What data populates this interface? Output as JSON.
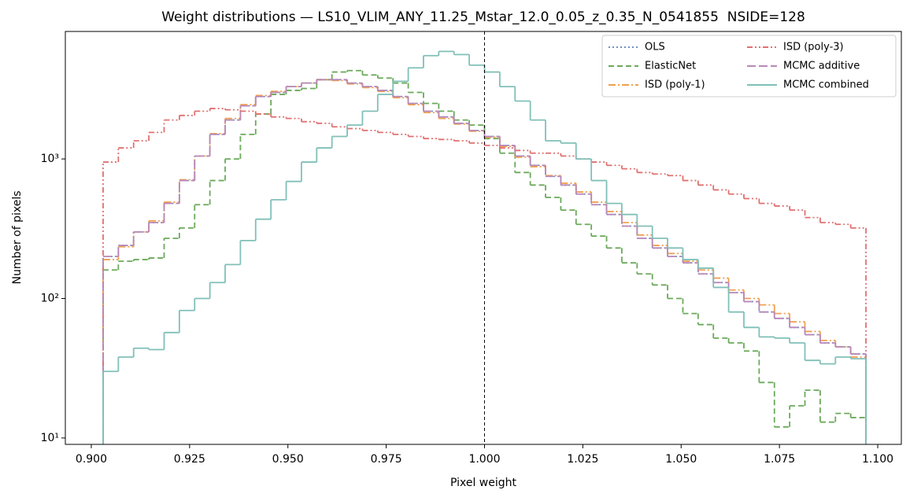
{
  "chart_data": {
    "type": "step-histogram",
    "title": "Weight distributions — LS10_VLIM_ANY_11.25_Mstar_12.0_0.05_z_0.35_N_0541855  NSIDE=128",
    "x_label": "Pixel weight",
    "y_label": "Number of pixels",
    "log_y": true,
    "legend_position": "upper right",
    "legend_columns": 2,
    "xlim": [
      0.8934,
      1.106
    ],
    "ylim": [
      9.0,
      8200
    ],
    "xticks": [
      {
        "value": 0.9,
        "label": "0.900"
      },
      {
        "value": 0.925,
        "label": "0.925"
      },
      {
        "value": 0.95,
        "label": "0.950"
      },
      {
        "value": 0.975,
        "label": "0.975"
      },
      {
        "value": 1.0,
        "label": "1.000"
      },
      {
        "value": 1.025,
        "label": "1.025"
      },
      {
        "value": 1.05,
        "label": "1.050"
      },
      {
        "value": 1.075,
        "label": "1.075"
      },
      {
        "value": 1.1,
        "label": "1.100"
      }
    ],
    "yticks": [
      {
        "value": 10,
        "label": "10¹"
      },
      {
        "value": 100,
        "label": "10²"
      },
      {
        "value": 1000,
        "label": "10³"
      }
    ],
    "vline": 1.0,
    "bins": [
      0.903,
      0.90688,
      0.91076,
      0.91464,
      0.91852,
      0.9224,
      0.92628,
      0.93016,
      0.93404,
      0.93792,
      0.9418,
      0.94568,
      0.94956,
      0.95344,
      0.95732,
      0.9612,
      0.96508,
      0.96896,
      0.97284,
      0.97672,
      0.9806,
      0.98448,
      0.98836,
      0.99224,
      0.99612,
      1.0,
      1.00388,
      1.00776,
      1.01164,
      1.01552,
      1.0194,
      1.02328,
      1.02716,
      1.03104,
      1.03492,
      1.0388,
      1.04268,
      1.04656,
      1.05044,
      1.05432,
      1.0582,
      1.06208,
      1.06596,
      1.06984,
      1.07372,
      1.0776,
      1.08148,
      1.08536,
      1.08924,
      1.09312,
      1.097
    ],
    "series": [
      {
        "name": "OLS",
        "color": "#6f8fbf",
        "linestyle": "dotted",
        "values": [
          200,
          240,
          300,
          350,
          480,
          700,
          1050,
          1500,
          1900,
          2400,
          2800,
          3000,
          3300,
          3500,
          3700,
          3700,
          3500,
          3300,
          3100,
          2800,
          2500,
          2200,
          2000,
          1800,
          1600,
          1450,
          1250,
          1050,
          900,
          750,
          650,
          560,
          470,
          400,
          330,
          270,
          230,
          200,
          180,
          150,
          130,
          110,
          95,
          80,
          72,
          62,
          55,
          48,
          45,
          40
        ]
      },
      {
        "name": "ElasticNet",
        "color": "#6aaa5a",
        "linestyle": "dashed",
        "values": [
          160,
          185,
          190,
          195,
          270,
          320,
          470,
          700,
          1000,
          1500,
          2100,
          2900,
          3100,
          3200,
          3700,
          4200,
          4300,
          4000,
          3800,
          3500,
          3000,
          2500,
          2200,
          1900,
          1750,
          1400,
          1100,
          800,
          650,
          530,
          430,
          340,
          280,
          230,
          180,
          150,
          125,
          100,
          78,
          65,
          52,
          48,
          42,
          25,
          12,
          17,
          22,
          13,
          15,
          14
        ]
      },
      {
        "name": "ISD (poly-1)",
        "color": "#f0a050",
        "linestyle": "dashdot",
        "values": [
          190,
          235,
          300,
          360,
          490,
          710,
          1050,
          1520,
          1950,
          2450,
          2850,
          3050,
          3300,
          3500,
          3700,
          3650,
          3450,
          3250,
          3050,
          2750,
          2450,
          2150,
          1950,
          1780,
          1580,
          1430,
          1230,
          1030,
          880,
          760,
          670,
          580,
          490,
          420,
          350,
          285,
          240,
          210,
          185,
          160,
          140,
          115,
          100,
          90,
          78,
          68,
          58,
          50,
          45,
          38
        ]
      },
      {
        "name": "ISD (poly-3)",
        "color": "#e07070",
        "linestyle": "dashdotdot",
        "values": [
          950,
          1200,
          1350,
          1550,
          1900,
          2050,
          2200,
          2300,
          2250,
          2200,
          2100,
          2000,
          1950,
          1850,
          1800,
          1700,
          1650,
          1600,
          1550,
          1500,
          1450,
          1400,
          1380,
          1350,
          1300,
          1250,
          1200,
          1150,
          1100,
          1100,
          1050,
          1000,
          950,
          900,
          850,
          800,
          780,
          760,
          700,
          650,
          600,
          560,
          520,
          480,
          460,
          430,
          380,
          350,
          340,
          320
        ]
      },
      {
        "name": "MCMC additive",
        "color": "#b888b8",
        "linestyle": "longdash",
        "values": [
          200,
          240,
          300,
          350,
          480,
          700,
          1050,
          1500,
          1900,
          2400,
          2800,
          3000,
          3300,
          3500,
          3700,
          3700,
          3500,
          3300,
          3100,
          2800,
          2500,
          2200,
          2000,
          1800,
          1600,
          1450,
          1250,
          1050,
          900,
          750,
          650,
          560,
          470,
          400,
          330,
          270,
          230,
          200,
          180,
          150,
          130,
          110,
          95,
          80,
          72,
          62,
          55,
          48,
          45,
          40
        ]
      },
      {
        "name": "MCMC combined",
        "color": "#80c0b8",
        "linestyle": "solid",
        "values": [
          30,
          38,
          44,
          43,
          57,
          82,
          100,
          130,
          175,
          260,
          370,
          510,
          690,
          950,
          1200,
          1450,
          1750,
          2200,
          2900,
          3600,
          4500,
          5500,
          5900,
          5600,
          4700,
          4200,
          3300,
          2600,
          1900,
          1350,
          1300,
          1000,
          700,
          480,
          400,
          330,
          270,
          230,
          190,
          165,
          120,
          80,
          62,
          53,
          52,
          48,
          36,
          34,
          38,
          37
        ]
      }
    ]
  }
}
